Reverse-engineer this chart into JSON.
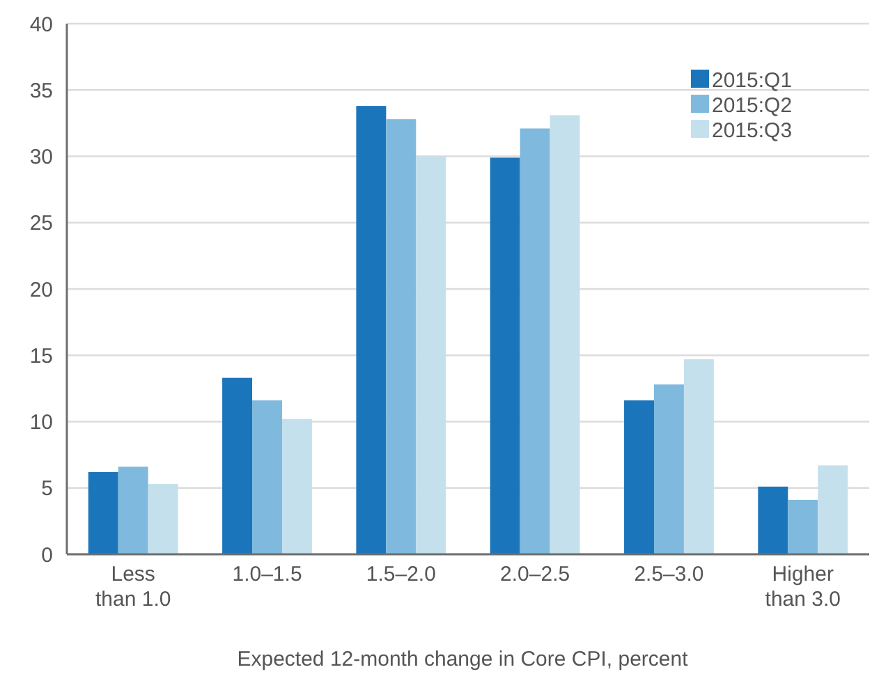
{
  "chart_data": {
    "type": "bar",
    "xlabel": "Expected 12-month change in Core CPI, percent",
    "categories": [
      "Less\nthan 1.0",
      "1.0–1.5",
      "1.5–2.0",
      "2.0–2.5",
      "2.5–3.0",
      "Higher\nthan 3.0"
    ],
    "series": [
      {
        "name": "2015:Q1",
        "color": "#1b75bb",
        "values": [
          6.2,
          13.3,
          33.8,
          29.9,
          11.6,
          5.1
        ]
      },
      {
        "name": "2015:Q2",
        "color": "#7fb9de",
        "values": [
          6.6,
          11.6,
          32.8,
          32.1,
          12.8,
          4.1
        ]
      },
      {
        "name": "2015:Q3",
        "color": "#c5e0ed",
        "values": [
          5.3,
          10.2,
          30.0,
          33.1,
          14.7,
          6.7
        ]
      }
    ],
    "ylim": [
      0,
      40
    ],
    "yticks": [
      0,
      5,
      10,
      15,
      20,
      25,
      30,
      35,
      40
    ],
    "grid": "y",
    "legend": "top right"
  }
}
